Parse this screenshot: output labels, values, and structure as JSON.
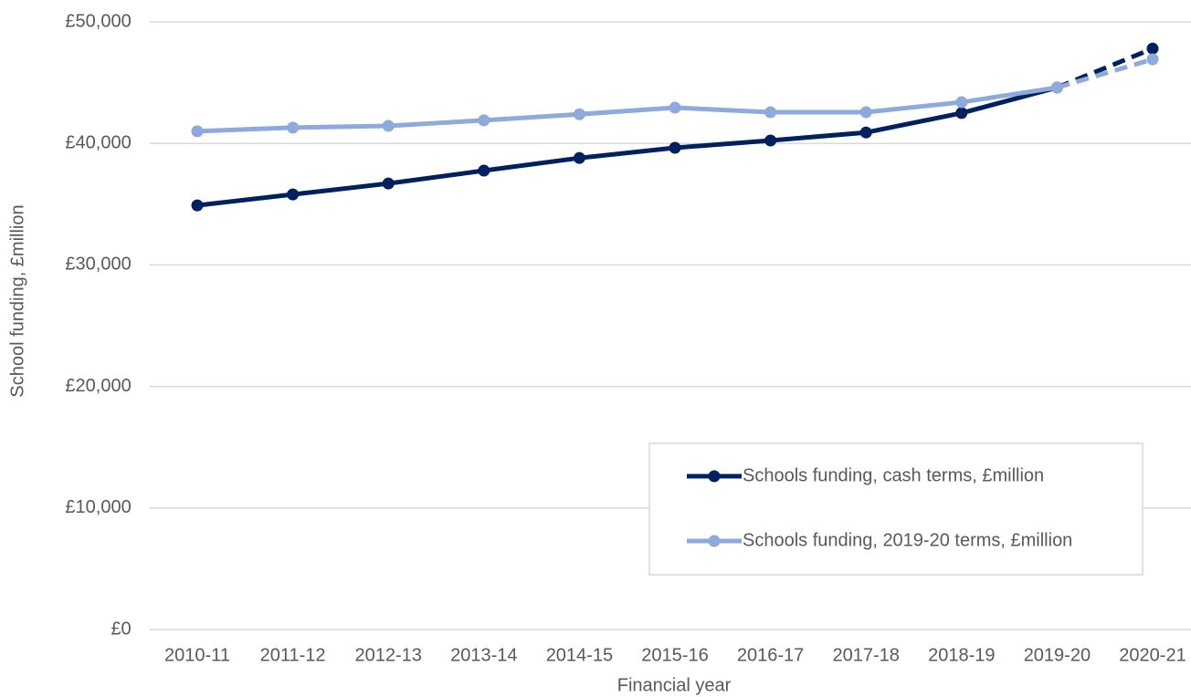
{
  "chart_data": {
    "type": "line",
    "x_label": "Financial year",
    "y_label": "School funding, £million",
    "categories": [
      "2010-11",
      "2011-12",
      "2012-13",
      "2013-14",
      "2014-15",
      "2015-16",
      "2016-17",
      "2017-18",
      "2018-19",
      "2019-20",
      "2020-21"
    ],
    "series": [
      {
        "name": "Schools funding, cash terms, £million",
        "color": "#002060",
        "values": [
          34900,
          35800,
          36700,
          37760,
          38800,
          39640,
          40240,
          40900,
          42500,
          44600,
          47800
        ]
      },
      {
        "name": "Schools funding, 2019-20 terms, £million",
        "color": "#8eaadc",
        "values": [
          41000,
          41300,
          41440,
          41900,
          42400,
          42940,
          42570,
          42570,
          43390,
          44600,
          46920
        ]
      }
    ],
    "dashed_last_segment": true,
    "ylim": [
      0,
      50000
    ],
    "yticks": [
      {
        "value": 0,
        "label": "£0"
      },
      {
        "value": 10000,
        "label": "£10,000"
      },
      {
        "value": 20000,
        "label": "£20,000"
      },
      {
        "value": 30000,
        "label": "£30,000"
      },
      {
        "value": 40000,
        "label": "£40,000"
      },
      {
        "value": 50000,
        "label": "£50,000"
      }
    ],
    "grid": true,
    "legend": "lower right"
  }
}
